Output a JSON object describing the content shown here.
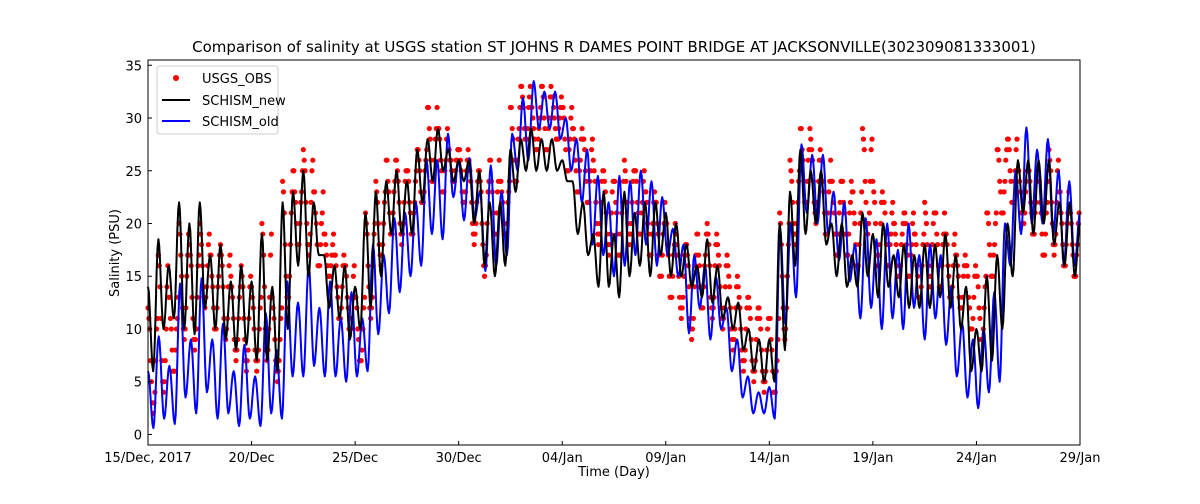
{
  "chart_data": {
    "type": "line",
    "title": "Comparison of salinity at USGS station ST JOHNS R DAMES POINT BRIDGE AT JACKSONVILLE(302309081333001)",
    "xlabel": "Time (Day)",
    "ylabel": "Salinity (PSU)",
    "x_unit": "days since 15/Dec, 2017",
    "xlim": [
      0,
      45
    ],
    "ylim": [
      -1,
      35.5
    ],
    "x_ticks": [
      0,
      5,
      10,
      15,
      20,
      25,
      30,
      35,
      40,
      45
    ],
    "x_tick_labels": [
      "15/Dec, 2017",
      "20/Dec",
      "25/Dec",
      "30/Dec",
      "04/Jan",
      "09/Jan",
      "14/Jan",
      "19/Jan",
      "24/Jan",
      "29/Jan"
    ],
    "y_ticks": [
      0,
      5,
      10,
      15,
      20,
      25,
      30,
      35
    ],
    "y_tick_labels": [
      "0",
      "5",
      "10",
      "15",
      "20",
      "25",
      "30",
      "35"
    ],
    "grid": false,
    "legend_position": "top-left",
    "legend": [
      "USGS_OBS",
      "SCHISM_new",
      "SCHISM_old"
    ],
    "series": [
      {
        "name": "SCHISM_new",
        "kind": "line",
        "color": "#000000",
        "sampling": "alternating tidal high/low values, evenly spaced over xlim",
        "values": [
          14,
          6,
          18.5,
          10,
          16,
          11,
          22,
          10,
          20,
          9.5,
          22,
          12,
          17,
          10,
          18,
          9,
          14.5,
          8,
          16,
          8.5,
          14.5,
          7,
          19,
          7,
          14,
          6,
          22,
          10,
          23,
          16,
          25,
          15,
          22,
          17,
          17,
          12,
          16,
          11,
          16,
          9,
          14,
          10,
          21,
          12,
          23,
          15,
          24,
          19,
          25,
          19,
          24,
          19,
          27,
          22,
          28,
          24,
          29,
          25,
          27,
          24,
          26,
          24,
          26,
          20,
          25,
          16,
          22,
          15,
          22,
          16,
          27,
          23,
          28,
          25,
          29,
          25,
          28,
          25,
          28,
          25,
          26,
          24,
          24,
          19,
          22,
          17,
          19,
          14,
          23,
          14,
          19,
          13,
          23,
          15,
          21,
          16,
          22,
          15,
          22,
          17,
          21,
          15,
          20,
          15,
          18,
          14,
          16,
          13,
          18.5,
          12.5,
          16,
          11,
          13,
          10,
          12.5,
          8,
          10,
          6,
          9,
          5,
          9,
          5,
          20,
          8,
          23,
          16,
          27,
          19,
          25,
          20,
          25,
          18,
          20,
          15,
          20,
          14,
          17,
          14,
          21,
          15,
          19,
          13,
          20,
          14,
          17,
          13,
          18,
          12,
          17,
          12,
          18,
          12,
          18,
          13,
          19,
          12,
          17,
          10,
          14,
          6,
          10,
          6,
          15,
          7,
          17,
          10,
          20,
          15,
          26,
          21,
          26,
          19,
          26,
          20,
          26,
          18,
          22,
          16,
          22,
          15,
          20
        ]
      },
      {
        "name": "SCHISM_old",
        "kind": "line",
        "color": "#0000ff",
        "sampling": "alternating tidal high/low values, evenly spaced over xlim",
        "values": [
          6,
          0.6,
          9.3,
          1.5,
          6.5,
          1,
          14.3,
          3.5,
          9,
          2,
          14.8,
          4,
          9,
          1.5,
          10.5,
          2,
          6,
          0.8,
          8.5,
          1.5,
          5.5,
          0.8,
          11.5,
          2,
          8,
          1.5,
          14.5,
          5.5,
          12.5,
          5.5,
          16,
          6.5,
          12,
          5.5,
          14.5,
          5.5,
          11,
          5,
          13.5,
          5.5,
          11,
          6,
          18,
          9.5,
          17,
          11.5,
          20.5,
          13.5,
          21,
          15,
          22,
          16,
          26,
          19,
          26,
          18.5,
          28.5,
          22.5,
          26,
          20.3,
          26.2,
          20.5,
          23,
          15.5,
          25.5,
          16,
          23,
          17,
          28.5,
          25,
          31.9,
          26,
          33.5,
          29,
          32.5,
          29,
          32.5,
          28,
          30,
          25,
          28,
          22,
          27,
          18,
          24.5,
          17,
          22,
          15,
          24.5,
          16,
          24,
          17,
          25,
          18,
          24,
          16,
          22.5,
          17,
          19.5,
          15,
          18,
          9.6,
          17,
          12,
          16,
          9,
          15,
          10,
          12,
          6,
          9,
          3.5,
          5.5,
          2,
          4,
          2,
          4.5,
          1.5,
          19.6,
          10.5,
          20,
          13,
          27.5,
          21,
          26.5,
          20,
          26.5,
          19,
          23,
          16.5,
          22,
          14.5,
          18,
          11,
          20.5,
          12,
          18.5,
          10,
          20,
          11,
          17.5,
          10,
          20,
          12,
          17,
          9,
          18,
          11,
          17,
          8.5,
          14,
          5.5,
          10.5,
          3.5,
          9,
          2.5,
          10,
          4,
          13.5,
          5,
          20,
          16,
          25,
          19,
          29.1,
          20,
          27,
          20,
          28,
          19,
          25,
          16,
          24,
          16,
          21
        ]
      },
      {
        "name": "USGS_OBS",
        "kind": "scatter",
        "color": "#ff0000",
        "sampling": "per half-day [high, low] of hourly integer observations, evenly spaced over xlim",
        "values": [
          [
            12,
            2
          ],
          [
            17,
            4
          ],
          [
            13,
            6
          ],
          [
            20,
            9
          ],
          [
            18,
            8
          ],
          [
            20,
            12
          ],
          [
            17,
            10
          ],
          [
            18,
            9
          ],
          [
            15,
            7
          ],
          [
            16,
            6
          ],
          [
            14,
            6
          ],
          [
            20,
            7
          ],
          [
            13,
            5
          ],
          [
            24,
            12
          ],
          [
            25,
            18
          ],
          [
            27,
            17
          ],
          [
            23,
            16
          ],
          [
            19,
            15
          ],
          [
            17,
            11
          ],
          [
            16,
            10
          ],
          [
            13,
            7
          ],
          [
            21,
            11
          ],
          [
            24,
            16
          ],
          [
            26,
            19
          ],
          [
            26,
            18
          ],
          [
            25,
            19
          ],
          [
            27,
            22
          ],
          [
            31,
            24
          ],
          [
            29,
            23
          ],
          [
            27,
            24
          ],
          [
            27,
            22
          ],
          [
            26,
            18
          ],
          [
            25,
            15
          ],
          [
            26,
            19
          ],
          [
            24,
            19
          ],
          [
            31,
            24
          ],
          [
            33,
            28
          ],
          [
            31,
            27
          ],
          [
            33,
            27
          ],
          [
            32,
            28
          ],
          [
            31,
            25
          ],
          [
            29,
            23
          ],
          [
            28,
            22
          ],
          [
            26,
            18
          ],
          [
            25,
            17
          ],
          [
            24,
            17
          ],
          [
            26,
            18
          ],
          [
            25,
            19
          ],
          [
            23,
            17
          ],
          [
            22,
            15
          ],
          [
            20,
            13
          ],
          [
            19,
            11
          ],
          [
            18,
            9
          ],
          [
            19,
            12
          ],
          [
            20,
            11
          ],
          [
            18,
            10
          ],
          [
            16,
            8
          ],
          [
            14,
            6
          ],
          [
            13,
            5
          ],
          [
            12,
            4
          ],
          [
            11,
            4
          ],
          [
            21,
            9
          ],
          [
            26,
            18
          ],
          [
            29,
            22
          ],
          [
            28,
            20
          ],
          [
            26,
            19
          ],
          [
            24,
            17
          ],
          [
            24,
            17
          ],
          [
            23,
            16
          ],
          [
            29,
            19
          ],
          [
            24,
            16
          ],
          [
            22,
            16
          ],
          [
            20,
            15
          ],
          [
            21,
            15
          ],
          [
            19,
            13
          ],
          [
            22,
            14
          ],
          [
            21,
            14
          ],
          [
            19,
            13
          ],
          [
            17,
            12
          ],
          [
            16,
            10
          ],
          [
            15,
            9
          ],
          [
            21,
            15
          ],
          [
            27,
            21
          ],
          [
            28,
            22
          ],
          [
            25,
            20
          ],
          [
            25,
            19
          ],
          [
            24,
            17
          ],
          [
            27,
            17
          ],
          [
            23,
            16
          ],
          [
            21,
            15
          ]
        ]
      }
    ]
  }
}
